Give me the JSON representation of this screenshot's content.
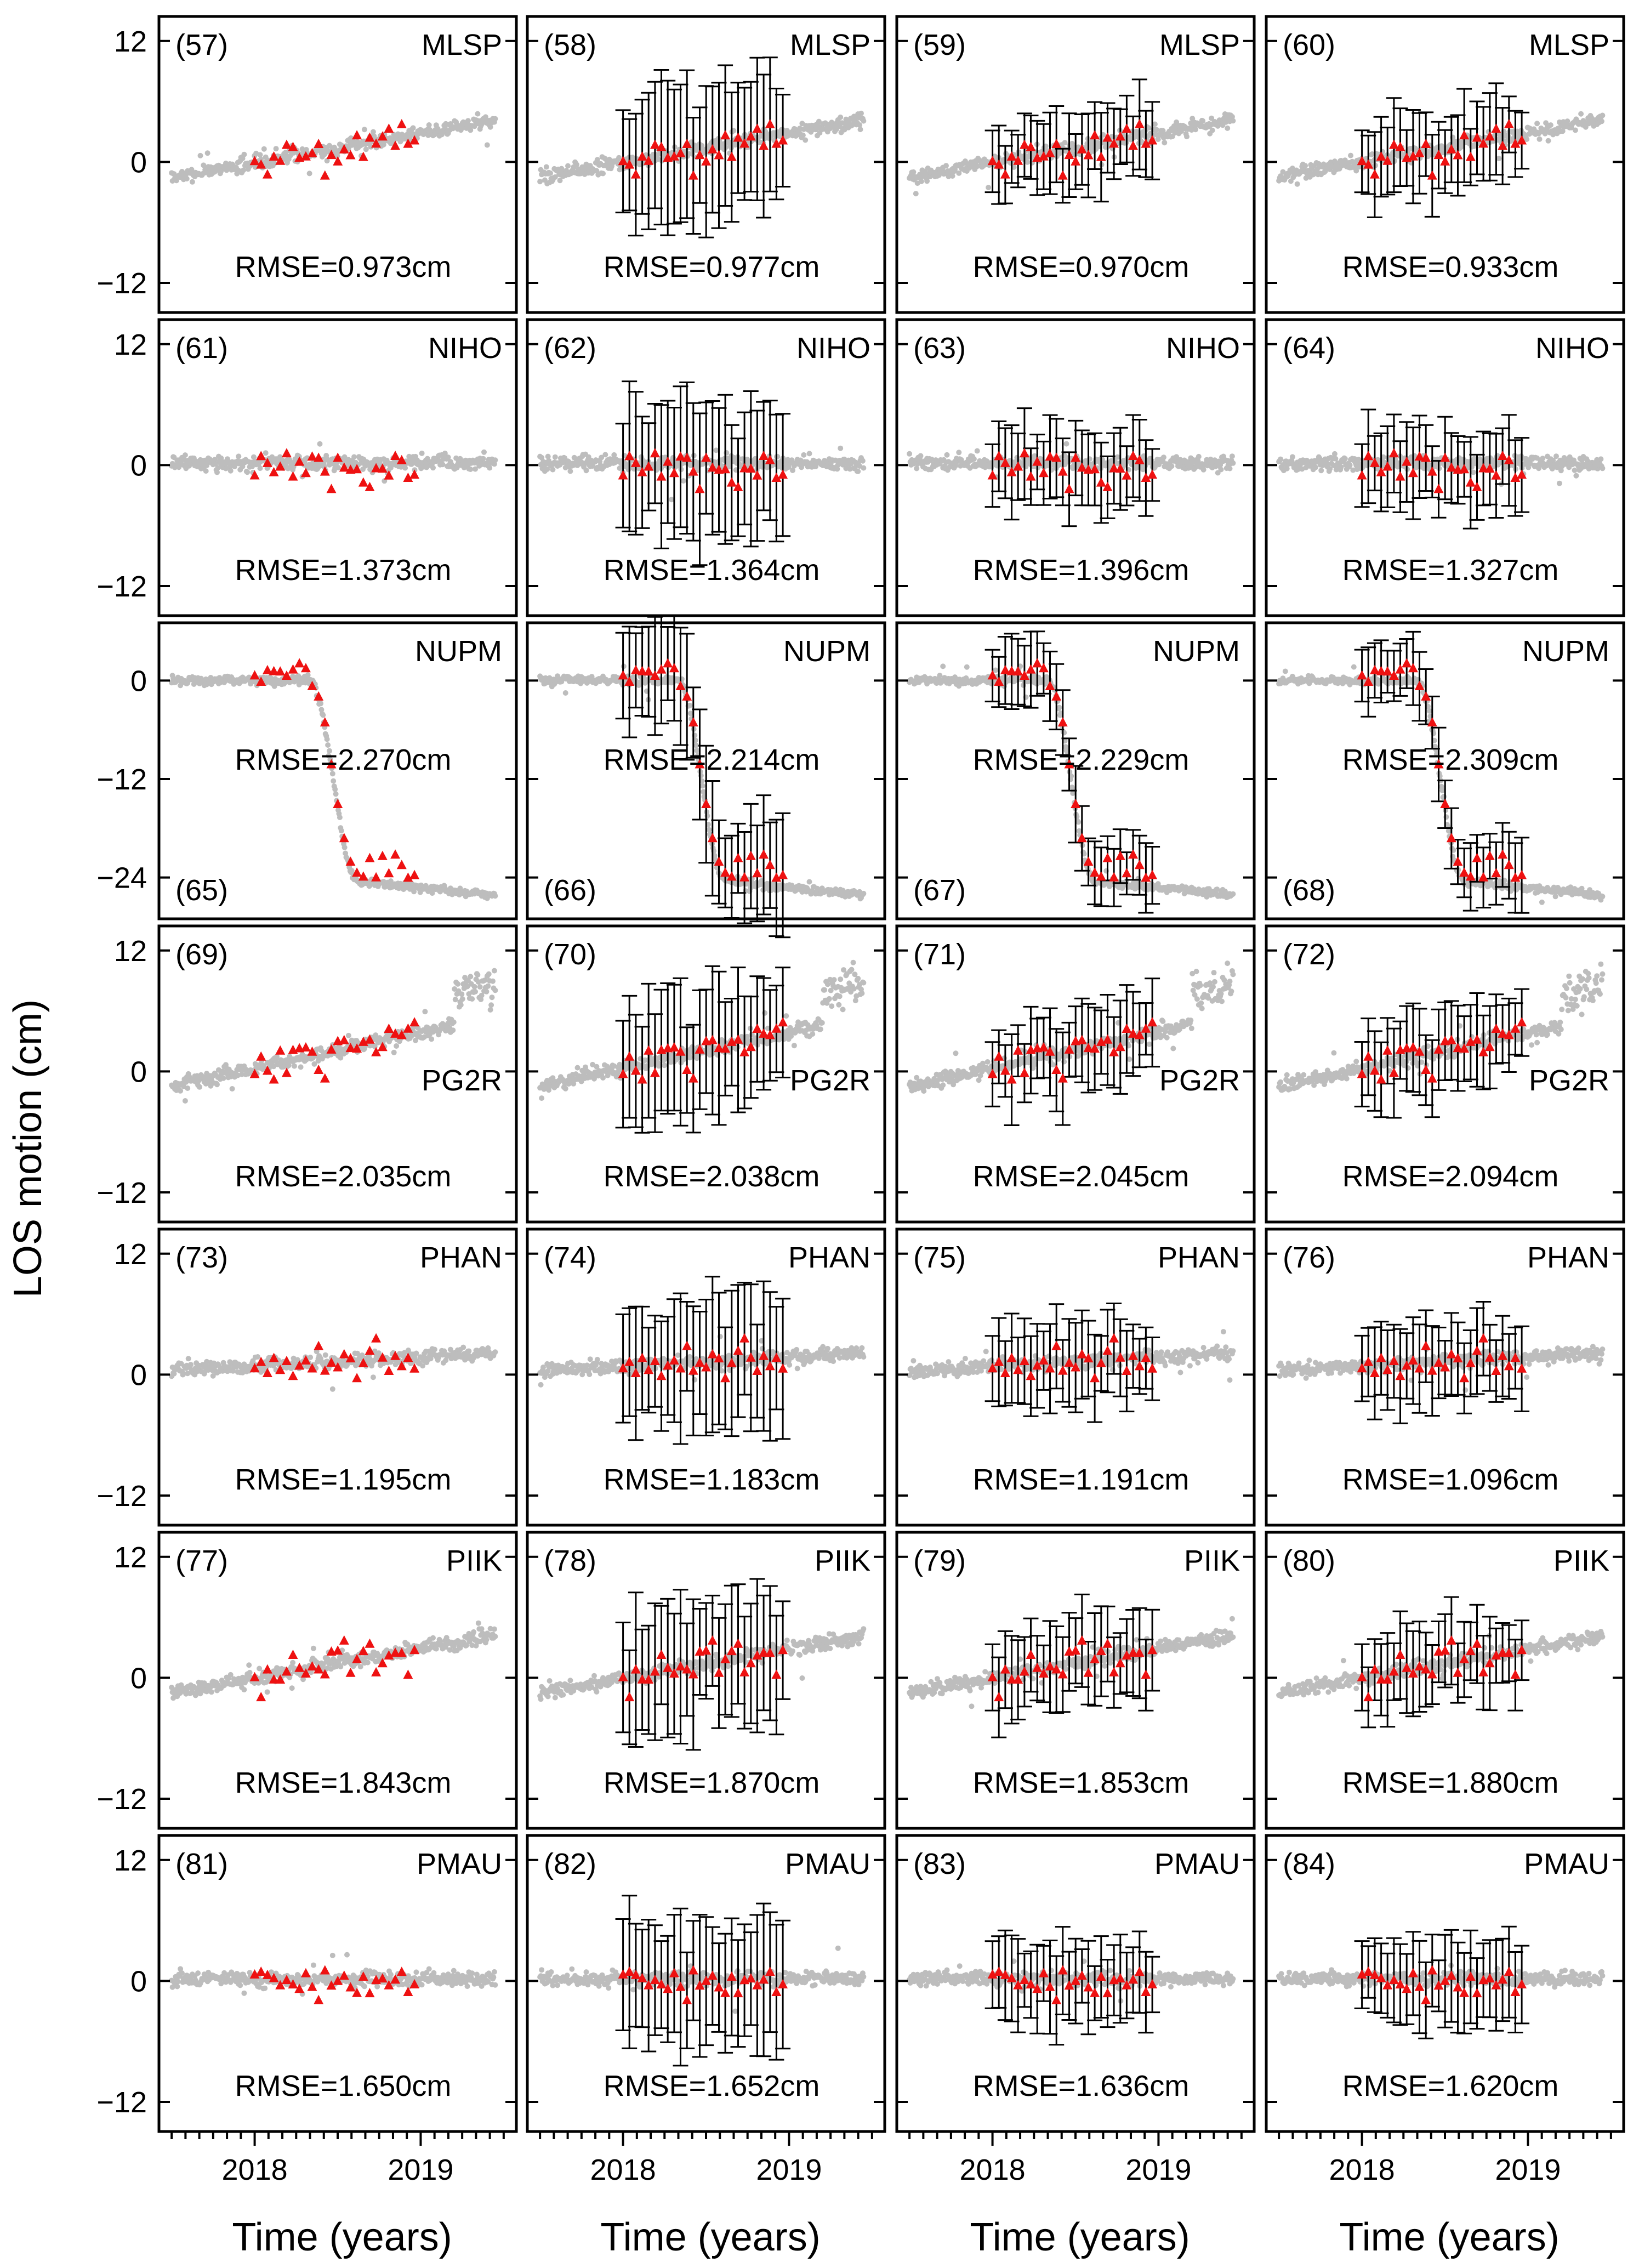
{
  "figure": {
    "ylabel": "LOS motion (cm)",
    "xlabel": "Time (years)"
  },
  "colors": {
    "gnss": "#bdbdbd",
    "insar": "#ee1111",
    "errorbar": "#000000",
    "frame": "#000000"
  },
  "chart_data": {
    "type": "scatter",
    "layout_grid": "7 rows x 4 columns of small-multiple panels",
    "x_ticks": [
      2018,
      2019
    ],
    "xlim": [
      2017.45,
      2019.55
    ],
    "rows": [
      {
        "station": "MLSP",
        "ylim": [
          -14.5,
          14
        ],
        "yticks": [
          12,
          0,
          -12
        ],
        "label_pos": "top",
        "trend": "linear_up",
        "panels": [
          {
            "num": "(57)",
            "rmse": "RMSE=0.973cm",
            "errorbars": "none"
          },
          {
            "num": "(58)",
            "rmse": "RMSE=0.977cm",
            "errorbars": "large"
          },
          {
            "num": "(59)",
            "rmse": "RMSE=0.970cm",
            "errorbars": "medium"
          },
          {
            "num": "(60)",
            "rmse": "RMSE=0.933cm",
            "errorbars": "medium"
          }
        ]
      },
      {
        "station": "NIHO",
        "ylim": [
          -14.5,
          14
        ],
        "yticks": [
          12,
          0,
          -12
        ],
        "label_pos": "top",
        "trend": "flat",
        "panels": [
          {
            "num": "(61)",
            "rmse": "RMSE=1.373cm",
            "errorbars": "none"
          },
          {
            "num": "(62)",
            "rmse": "RMSE=1.364cm",
            "errorbars": "large"
          },
          {
            "num": "(63)",
            "rmse": "RMSE=1.396cm",
            "errorbars": "medium"
          },
          {
            "num": "(64)",
            "rmse": "RMSE=1.327cm",
            "errorbars": "medium"
          }
        ]
      },
      {
        "station": "NUPM",
        "ylim": [
          -28.5,
          6.5
        ],
        "yticks": [
          0,
          -12,
          -24
        ],
        "label_pos": "bottom",
        "trend": "collapse",
        "panels": [
          {
            "num": "(65)",
            "rmse": "RMSE=2.270cm",
            "errorbars": "none"
          },
          {
            "num": "(66)",
            "rmse": "RMSE=2.214cm",
            "errorbars": "large"
          },
          {
            "num": "(67)",
            "rmse": "RMSE=2.229cm",
            "errorbars": "medium"
          },
          {
            "num": "(68)",
            "rmse": "RMSE=2.309cm",
            "errorbars": "medium"
          }
        ]
      },
      {
        "station": "PG2R",
        "ylim": [
          -14.5,
          14
        ],
        "yticks": [
          12,
          0,
          -12
        ],
        "label_pos": "top",
        "trend": "linear_up_steep",
        "panels": [
          {
            "num": "(69)",
            "rmse": "RMSE=2.035cm",
            "errorbars": "none"
          },
          {
            "num": "(70)",
            "rmse": "RMSE=2.038cm",
            "errorbars": "large"
          },
          {
            "num": "(71)",
            "rmse": "RMSE=2.045cm",
            "errorbars": "medium"
          },
          {
            "num": "(72)",
            "rmse": "RMSE=2.094cm",
            "errorbars": "medium"
          }
        ]
      },
      {
        "station": "PHAN",
        "ylim": [
          -14.5,
          14
        ],
        "yticks": [
          12,
          0,
          -12
        ],
        "label_pos": "top",
        "trend": "slight_up",
        "panels": [
          {
            "num": "(73)",
            "rmse": "RMSE=1.195cm",
            "errorbars": "none"
          },
          {
            "num": "(74)",
            "rmse": "RMSE=1.183cm",
            "errorbars": "large"
          },
          {
            "num": "(75)",
            "rmse": "RMSE=1.191cm",
            "errorbars": "medium"
          },
          {
            "num": "(76)",
            "rmse": "RMSE=1.096cm",
            "errorbars": "medium"
          }
        ]
      },
      {
        "station": "PIIK",
        "ylim": [
          -14.5,
          14
        ],
        "yticks": [
          12,
          0,
          -12
        ],
        "label_pos": "top",
        "trend": "linear_up",
        "panels": [
          {
            "num": "(77)",
            "rmse": "RMSE=1.843cm",
            "errorbars": "none"
          },
          {
            "num": "(78)",
            "rmse": "RMSE=1.870cm",
            "errorbars": "large"
          },
          {
            "num": "(79)",
            "rmse": "RMSE=1.853cm",
            "errorbars": "medium"
          },
          {
            "num": "(80)",
            "rmse": "RMSE=1.880cm",
            "errorbars": "medium"
          }
        ]
      },
      {
        "station": "PMAU",
        "ylim": [
          -14.5,
          14
        ],
        "yticks": [
          12,
          0,
          -12
        ],
        "label_pos": "top",
        "trend": "flat",
        "panels": [
          {
            "num": "(81)",
            "rmse": "RMSE=1.650cm",
            "errorbars": "none"
          },
          {
            "num": "(82)",
            "rmse": "RMSE=1.652cm",
            "errorbars": "large"
          },
          {
            "num": "(83)",
            "rmse": "RMSE=1.636cm",
            "errorbars": "medium"
          },
          {
            "num": "(84)",
            "rmse": "RMSE=1.620cm",
            "errorbars": "medium"
          }
        ]
      }
    ]
  }
}
